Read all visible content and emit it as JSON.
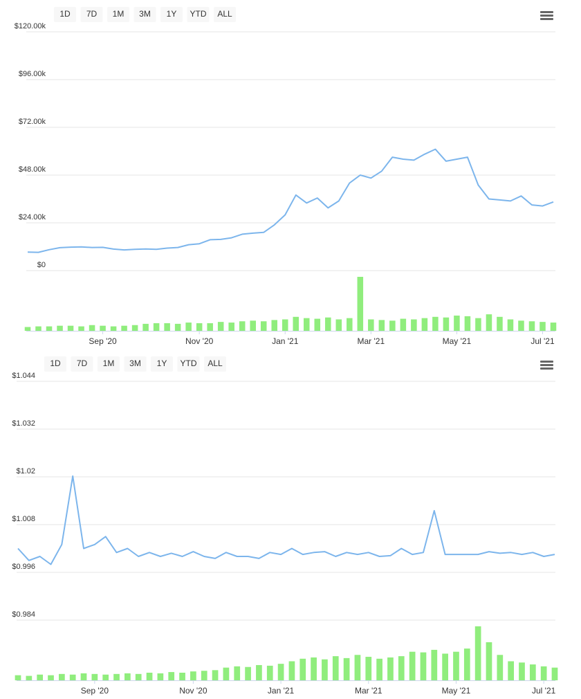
{
  "chart_data": [
    {
      "type": "line",
      "range_buttons": [
        "1D",
        "7D",
        "1M",
        "3M",
        "1Y",
        "YTD",
        "ALL"
      ],
      "categories": [
        null,
        null,
        null,
        null,
        null,
        null,
        null,
        "Sep '20",
        null,
        null,
        null,
        null,
        null,
        null,
        null,
        null,
        "Nov '20",
        null,
        null,
        null,
        null,
        null,
        null,
        null,
        "Jan '21",
        null,
        null,
        null,
        null,
        null,
        null,
        null,
        "Mar '21",
        null,
        null,
        null,
        null,
        null,
        null,
        null,
        "May '21",
        null,
        null,
        null,
        null,
        null,
        null,
        null,
        "Jul '21",
        null
      ],
      "ylim": [
        0,
        120000
      ],
      "yticks": [
        {
          "value": 0,
          "label": "$0"
        },
        {
          "value": 24000,
          "label": "$24.00k"
        },
        {
          "value": 48000,
          "label": "$48.00k"
        },
        {
          "value": 72000,
          "label": "$72.00k"
        },
        {
          "value": 96000,
          "label": "$96.00k"
        },
        {
          "value": 120000,
          "label": "$120.00k"
        }
      ],
      "grid": true,
      "series": [
        {
          "type": "line",
          "color": "#7cb5ec",
          "values": [
            9300,
            9200,
            10500,
            11500,
            11800,
            11900,
            11600,
            11700,
            10800,
            10400,
            10700,
            10900,
            10700,
            11300,
            11600,
            13000,
            13500,
            15500,
            15700,
            16500,
            18300,
            18800,
            19200,
            23000,
            28000,
            38000,
            34000,
            36500,
            31500,
            35000,
            44000,
            48000,
            46500,
            50000,
            57000,
            56000,
            55500,
            58500,
            61000,
            55000,
            56000,
            57000,
            43000,
            36000,
            35500,
            35000,
            37500,
            33000,
            32500,
            34500
          ]
        },
        {
          "type": "bar",
          "color": "#90ed7d",
          "values": [
            6,
            7,
            7,
            8,
            8,
            7,
            9,
            8,
            7,
            8,
            9,
            11,
            12,
            12,
            11,
            13,
            12,
            12,
            14,
            13,
            15,
            16,
            15,
            17,
            18,
            22,
            20,
            19,
            21,
            18,
            20,
            85,
            18,
            17,
            16,
            19,
            18,
            20,
            22,
            21,
            24,
            23,
            20,
            26,
            22,
            18,
            16,
            15,
            14,
            13
          ]
        }
      ]
    },
    {
      "type": "line",
      "range_buttons": [
        "1D",
        "7D",
        "1M",
        "3M",
        "1Y",
        "YTD",
        "ALL"
      ],
      "categories": [
        null,
        null,
        null,
        null,
        null,
        null,
        null,
        "Sep '20",
        null,
        null,
        null,
        null,
        null,
        null,
        null,
        null,
        "Nov '20",
        null,
        null,
        null,
        null,
        null,
        null,
        null,
        "Jan '21",
        null,
        null,
        null,
        null,
        null,
        null,
        null,
        "Mar '21",
        null,
        null,
        null,
        null,
        null,
        null,
        null,
        "May '21",
        null,
        null,
        null,
        null,
        null,
        null,
        null,
        "Jul '21",
        null
      ],
      "ylim": [
        0.984,
        1.044
      ],
      "yticks": [
        {
          "value": 0.984,
          "label": "$0.984"
        },
        {
          "value": 0.996,
          "label": "$0.996"
        },
        {
          "value": 1.008,
          "label": "$1.008"
        },
        {
          "value": 1.02,
          "label": "$1.02"
        },
        {
          "value": 1.032,
          "label": "$1.032"
        },
        {
          "value": 1.044,
          "label": "$1.044"
        }
      ],
      "grid": true,
      "series": [
        {
          "type": "line",
          "color": "#7cb5ec",
          "values": [
            1.002,
            0.999,
            1.0,
            0.998,
            1.003,
            1.0202,
            1.002,
            1.003,
            1.005,
            1.001,
            1.002,
            1.0,
            1.001,
            1.0,
            1.0008,
            1.0,
            1.0012,
            1.0,
            0.9995,
            1.001,
            1.0,
            1.0,
            0.9995,
            1.001,
            1.0005,
            1.002,
            1.0005,
            1.001,
            1.0012,
            1.0,
            1.001,
            1.0005,
            1.001,
            1.0,
            1.0002,
            1.002,
            1.0005,
            1.001,
            1.0115,
            1.0005,
            1.0005,
            1.0005,
            1.0005,
            1.0012,
            1.0008,
            1.001,
            1.0005,
            1.001,
            1.0,
            1.0005
          ]
        },
        {
          "type": "bar",
          "color": "#90ed7d",
          "values": [
            8,
            7,
            9,
            8,
            10,
            9,
            11,
            10,
            9,
            10,
            11,
            10,
            12,
            11,
            13,
            12,
            14,
            15,
            16,
            20,
            22,
            21,
            24,
            23,
            26,
            30,
            34,
            36,
            33,
            38,
            35,
            40,
            37,
            34,
            36,
            38,
            45,
            44,
            48,
            42,
            45,
            50,
            85,
            60,
            40,
            30,
            28,
            25,
            22,
            20
          ]
        }
      ]
    }
  ]
}
